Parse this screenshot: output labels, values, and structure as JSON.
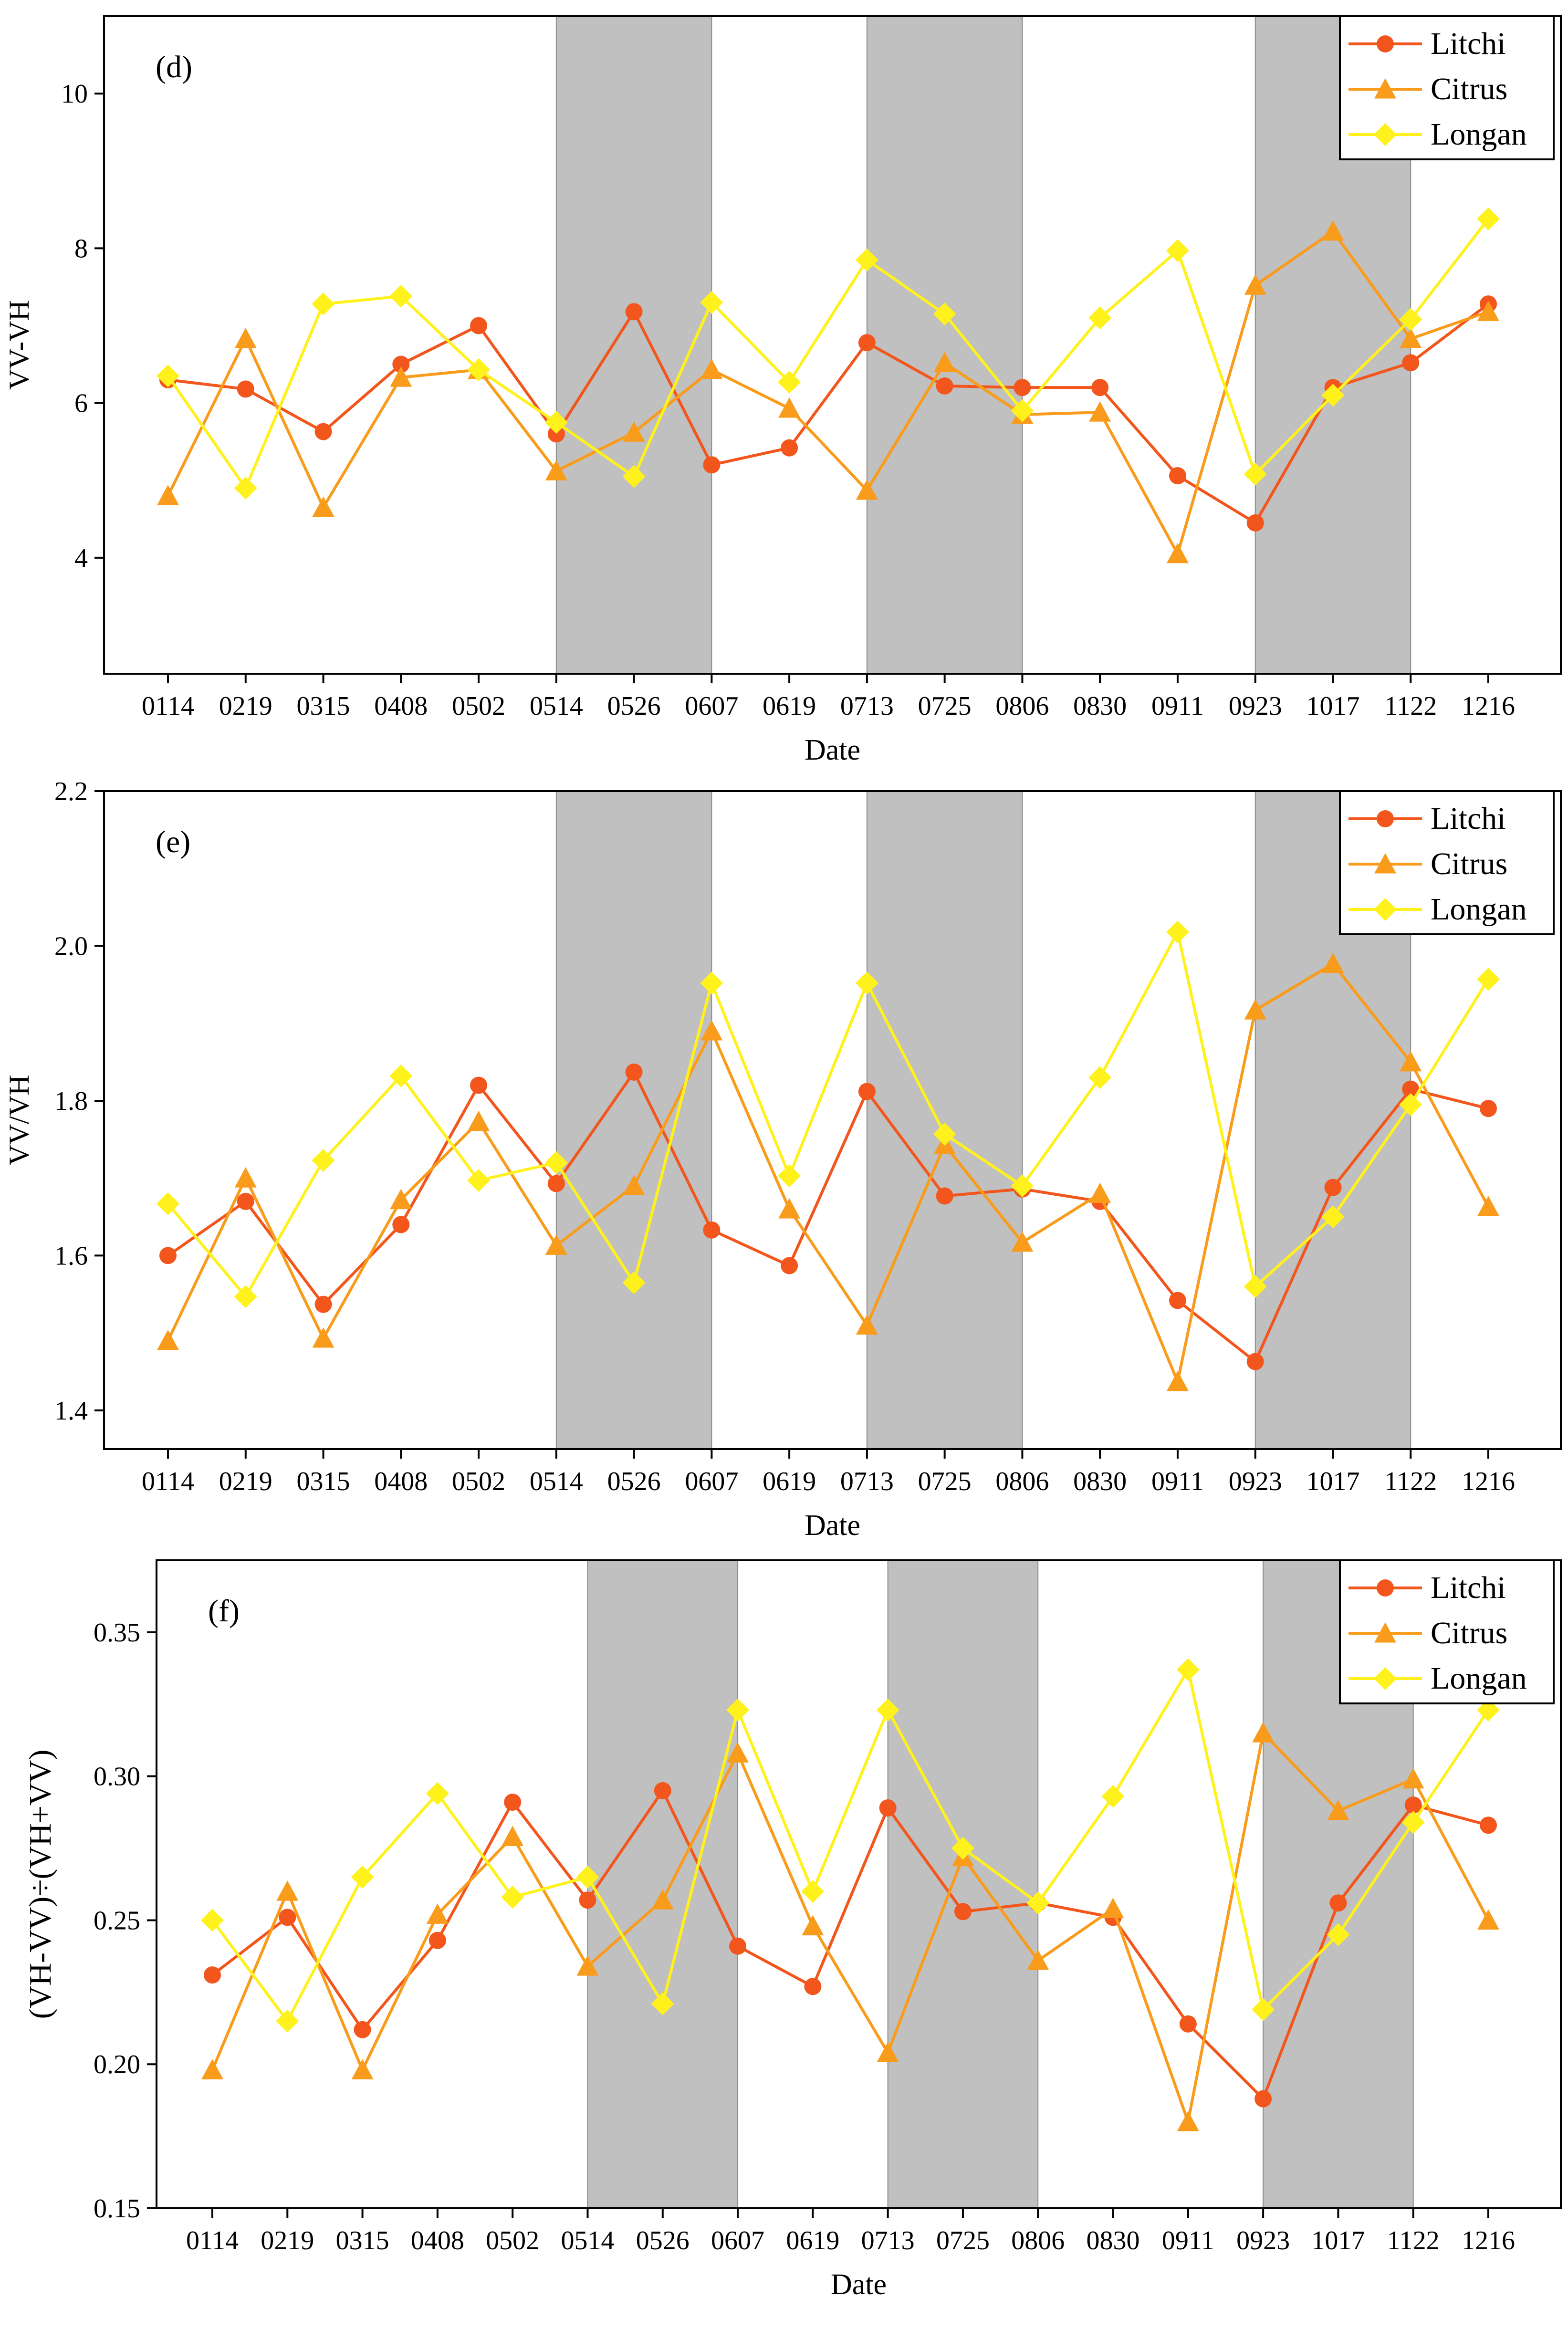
{
  "colors": {
    "litchi": "#F2561D",
    "citrus": "#F99B1B",
    "longan": "#FFF11C",
    "band": "#C0C0C0",
    "axis": "#000000"
  },
  "chart_data": [
    {
      "panel": "(d)",
      "type": "line",
      "xlabel": "Date",
      "ylabel": "VV-VH",
      "ylim": [
        2.5,
        11.0
      ],
      "yticks": [
        "4",
        "6",
        "8",
        "10"
      ],
      "ytick_values": [
        4,
        6,
        8,
        10
      ],
      "categories": [
        "0114",
        "0219",
        "0315",
        "0408",
        "0502",
        "0514",
        "0526",
        "0607",
        "0619",
        "0713",
        "0725",
        "0806",
        "0830",
        "0911",
        "0923",
        "1017",
        "1122",
        "1216"
      ],
      "shaded_spans": [
        [
          "0514",
          "0607"
        ],
        [
          "0713",
          "0806"
        ],
        [
          "0923",
          "1122"
        ]
      ],
      "legend": [
        "Litchi",
        "Citrus",
        "Longan"
      ],
      "legend_position": "top-right",
      "series": [
        {
          "name": "Litchi",
          "marker": "circle",
          "values": [
            6.3,
            6.18,
            5.63,
            6.5,
            7.0,
            5.6,
            7.18,
            5.2,
            5.42,
            6.78,
            6.22,
            6.2,
            6.2,
            5.06,
            4.45,
            6.2,
            6.52,
            7.28
          ]
        },
        {
          "name": "Citrus",
          "marker": "triangle",
          "values": [
            4.8,
            6.83,
            4.65,
            6.33,
            6.43,
            5.12,
            5.62,
            6.43,
            5.93,
            4.87,
            6.52,
            5.85,
            5.88,
            4.05,
            7.52,
            8.22,
            6.83,
            7.18
          ]
        },
        {
          "name": "Longan",
          "marker": "diamond",
          "values": [
            6.35,
            4.9,
            7.28,
            7.38,
            6.43,
            5.75,
            5.05,
            7.3,
            6.27,
            7.85,
            7.15,
            5.9,
            7.1,
            7.97,
            5.08,
            6.1,
            7.08,
            8.38
          ]
        }
      ]
    },
    {
      "panel": "(e)",
      "type": "line",
      "xlabel": "Date",
      "ylabel": "VV/VH",
      "ylim": [
        1.35,
        2.2
      ],
      "yticks": [
        "1.4",
        "1.6",
        "1.8",
        "2.0",
        "2.2"
      ],
      "ytick_values": [
        1.4,
        1.6,
        1.8,
        2.0,
        2.2
      ],
      "categories": [
        "0114",
        "0219",
        "0315",
        "0408",
        "0502",
        "0514",
        "0526",
        "0607",
        "0619",
        "0713",
        "0725",
        "0806",
        "0830",
        "0911",
        "0923",
        "1017",
        "1122",
        "1216"
      ],
      "shaded_spans": [
        [
          "0514",
          "0607"
        ],
        [
          "0713",
          "0806"
        ],
        [
          "0923",
          "1122"
        ]
      ],
      "legend": [
        "Litchi",
        "Citrus",
        "Longan"
      ],
      "legend_position": "top-right",
      "series": [
        {
          "name": "Litchi",
          "marker": "circle",
          "values": [
            1.6,
            1.67,
            1.537,
            1.64,
            1.82,
            1.693,
            1.837,
            1.633,
            1.587,
            1.812,
            1.677,
            1.686,
            1.67,
            1.542,
            1.463,
            1.688,
            1.815,
            1.79
          ]
        },
        {
          "name": "Citrus",
          "marker": "triangle",
          "values": [
            1.49,
            1.7,
            1.493,
            1.672,
            1.773,
            1.613,
            1.69,
            1.89,
            1.66,
            1.51,
            1.743,
            1.617,
            1.68,
            1.437,
            1.917,
            1.977,
            1.85,
            1.663
          ]
        },
        {
          "name": "Longan",
          "marker": "diamond",
          "values": [
            1.667,
            1.547,
            1.723,
            1.832,
            1.697,
            1.72,
            1.565,
            1.952,
            1.703,
            1.952,
            1.757,
            1.69,
            1.83,
            2.018,
            1.56,
            1.65,
            1.795,
            1.957
          ]
        }
      ]
    },
    {
      "panel": "(f)",
      "type": "line",
      "xlabel": "Date",
      "ylabel": "(VH-VV)÷(VH+VV)",
      "ylim": [
        0.15,
        0.375
      ],
      "yticks": [
        "0.15",
        "0.20",
        "0.25",
        "0.30",
        "0.35"
      ],
      "ytick_values": [
        0.15,
        0.2,
        0.25,
        0.3,
        0.35
      ],
      "categories": [
        "0114",
        "0219",
        "0315",
        "0408",
        "0502",
        "0514",
        "0526",
        "0607",
        "0619",
        "0713",
        "0725",
        "0806",
        "0830",
        "0911",
        "0923",
        "1017",
        "1122",
        "1216"
      ],
      "shaded_spans": [
        [
          "0514",
          "0607"
        ],
        [
          "0713",
          "0806"
        ],
        [
          "0923",
          "1122"
        ]
      ],
      "legend": [
        "Litchi",
        "Citrus",
        "Longan"
      ],
      "legend_position": "top-right",
      "series": [
        {
          "name": "Litchi",
          "marker": "circle",
          "values": [
            0.231,
            0.251,
            0.212,
            0.243,
            0.291,
            0.257,
            0.295,
            0.241,
            0.227,
            0.289,
            0.253,
            0.256,
            0.251,
            0.214,
            0.188,
            0.256,
            0.29,
            0.283
          ]
        },
        {
          "name": "Citrus",
          "marker": "triangle",
          "values": [
            0.198,
            0.26,
            0.198,
            0.252,
            0.279,
            0.234,
            0.257,
            0.308,
            0.248,
            0.204,
            0.272,
            0.236,
            0.254,
            0.18,
            0.315,
            0.288,
            0.299,
            0.25
          ]
        },
        {
          "name": "Longan",
          "marker": "diamond",
          "values": [
            0.25,
            0.215,
            0.265,
            0.294,
            0.258,
            0.265,
            0.221,
            0.323,
            0.26,
            0.323,
            0.275,
            0.256,
            0.293,
            0.337,
            0.219,
            0.245,
            0.284,
            0.323
          ]
        }
      ]
    }
  ]
}
